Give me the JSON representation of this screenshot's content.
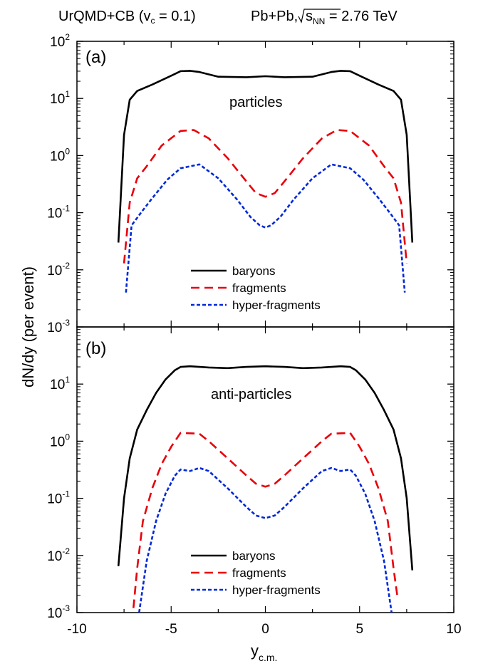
{
  "figure": {
    "title_model": "UrQMD+CB (v",
    "title_model_sub": "c",
    "title_model_rest": " = 0.1)",
    "title_system": "Pb+Pb,",
    "title_energy_s": "s",
    "title_energy_sub": "NN",
    "title_energy_rest": " = 2.76 TeV",
    "ylabel": "dN/dy (per event)",
    "xlabel_main": "y",
    "xlabel_sub": "c.m."
  },
  "chart_data": [
    {
      "panel": "top",
      "type": "line",
      "panel_label": "(a)",
      "annotation": "particles",
      "yscale": "log",
      "ylim": [
        0.001,
        100
      ],
      "xlim": [
        -10,
        10
      ],
      "yticks": [
        {
          "base": "10",
          "exp": "-3"
        },
        {
          "base": "10",
          "exp": "-2"
        },
        {
          "base": "10",
          "exp": "-1"
        },
        {
          "base": "10",
          "exp": "0"
        },
        {
          "base": "10",
          "exp": "1"
        },
        {
          "base": "10",
          "exp": "2"
        }
      ],
      "legend_position": "bottom-center",
      "series": [
        {
          "name": "baryons",
          "color": "#000000",
          "dash": "solid",
          "x": [
            -7.8,
            -7.5,
            -7.2,
            -6.8,
            -6.0,
            -5.0,
            -4.5,
            -4.0,
            -3.5,
            -2.5,
            -1.0,
            0.0,
            1.0,
            2.5,
            3.5,
            4.0,
            4.5,
            5.0,
            6.0,
            6.8,
            7.2,
            7.5,
            7.8
          ],
          "y": [
            0.03,
            2.3,
            9.5,
            13.5,
            17.5,
            25.0,
            30.0,
            30.5,
            29.0,
            24.0,
            23.5,
            24.5,
            23.5,
            24.0,
            29.0,
            30.5,
            30.0,
            25.0,
            17.5,
            13.5,
            9.5,
            2.3,
            0.03
          ]
        },
        {
          "name": "fragments",
          "color": "#e8000b",
          "dash": "long",
          "x": [
            -7.5,
            -7.2,
            -6.8,
            -6.3,
            -5.5,
            -4.5,
            -3.8,
            -3.0,
            -2.0,
            -1.0,
            -0.5,
            0.0,
            0.5,
            1.0,
            2.0,
            3.0,
            3.8,
            4.5,
            5.5,
            6.3,
            6.8,
            7.2,
            7.5
          ],
          "y": [
            0.013,
            0.15,
            0.4,
            0.65,
            1.5,
            2.7,
            2.8,
            2.0,
            0.9,
            0.35,
            0.22,
            0.19,
            0.22,
            0.35,
            0.9,
            2.0,
            2.8,
            2.7,
            1.5,
            0.65,
            0.4,
            0.15,
            0.013
          ]
        },
        {
          "name": "hyper-fragments",
          "color": "#0028d8",
          "dash": "short",
          "x": [
            -7.4,
            -7.1,
            -6.6,
            -6.0,
            -5.2,
            -4.5,
            -3.5,
            -2.5,
            -1.5,
            -0.8,
            -0.3,
            0.0,
            0.3,
            0.8,
            1.5,
            2.5,
            3.5,
            4.5,
            5.2,
            6.0,
            6.6,
            7.1,
            7.4
          ],
          "y": [
            0.004,
            0.06,
            0.1,
            0.18,
            0.38,
            0.6,
            0.7,
            0.4,
            0.17,
            0.085,
            0.06,
            0.055,
            0.06,
            0.085,
            0.17,
            0.4,
            0.7,
            0.6,
            0.38,
            0.18,
            0.1,
            0.06,
            0.004
          ]
        }
      ]
    },
    {
      "panel": "bottom",
      "type": "line",
      "panel_label": "(b)",
      "annotation": "anti-particles",
      "yscale": "log",
      "ylim": [
        0.001,
        100
      ],
      "xlim": [
        -10,
        10
      ],
      "xticks": [
        -10,
        -5,
        0,
        5,
        10
      ],
      "yticks": [
        {
          "base": "10",
          "exp": "-3"
        },
        {
          "base": "10",
          "exp": "-2"
        },
        {
          "base": "10",
          "exp": "-1"
        },
        {
          "base": "10",
          "exp": "0"
        },
        {
          "base": "10",
          "exp": "1"
        }
      ],
      "legend_position": "bottom-center",
      "series": [
        {
          "name": "baryons",
          "color": "#000000",
          "dash": "solid",
          "x": [
            -7.8,
            -7.5,
            -7.2,
            -6.8,
            -6.3,
            -5.8,
            -5.3,
            -4.8,
            -4.5,
            -4.0,
            -3.0,
            -2.0,
            -1.0,
            0.0,
            1.0,
            2.0,
            3.0,
            4.0,
            4.5,
            4.8,
            5.3,
            5.8,
            6.3,
            6.8,
            7.2,
            7.5,
            7.8
          ],
          "y": [
            0.0065,
            0.1,
            0.5,
            1.6,
            3.5,
            7.0,
            12.0,
            17.5,
            20.0,
            20.5,
            19.5,
            19.0,
            20.0,
            20.5,
            20.0,
            19.0,
            19.5,
            20.5,
            20.0,
            17.5,
            12.0,
            7.0,
            3.5,
            1.6,
            0.5,
            0.1,
            0.0055
          ]
        },
        {
          "name": "fragments",
          "color": "#e8000b",
          "dash": "long",
          "x": [
            -7.0,
            -6.8,
            -6.5,
            -6.0,
            -5.5,
            -5.0,
            -4.5,
            -3.5,
            -3.0,
            -2.0,
            -1.0,
            -0.5,
            0.0,
            0.5,
            1.0,
            2.0,
            3.0,
            3.5,
            4.5,
            5.0,
            5.5,
            6.0,
            6.5,
            6.8,
            7.0
          ],
          "y": [
            0.0012,
            0.006,
            0.04,
            0.15,
            0.4,
            0.8,
            1.4,
            1.35,
            1.0,
            0.5,
            0.25,
            0.18,
            0.16,
            0.18,
            0.25,
            0.5,
            1.0,
            1.35,
            1.4,
            0.8,
            0.4,
            0.15,
            0.04,
            0.006,
            0.002
          ]
        },
        {
          "name": "hyper-fragments",
          "color": "#0028d8",
          "dash": "short",
          "x": [
            -6.7,
            -6.3,
            -5.8,
            -5.3,
            -4.8,
            -4.5,
            -4.0,
            -3.5,
            -3.0,
            -2.0,
            -1.0,
            -0.5,
            0.0,
            0.5,
            1.0,
            2.0,
            3.0,
            3.5,
            4.0,
            4.5,
            4.8,
            5.3,
            5.8,
            6.3,
            6.7
          ],
          "y": [
            0.001,
            0.008,
            0.04,
            0.12,
            0.25,
            0.32,
            0.3,
            0.34,
            0.3,
            0.15,
            0.07,
            0.05,
            0.045,
            0.05,
            0.07,
            0.15,
            0.3,
            0.34,
            0.3,
            0.32,
            0.25,
            0.12,
            0.04,
            0.008,
            0.001
          ]
        }
      ]
    }
  ]
}
